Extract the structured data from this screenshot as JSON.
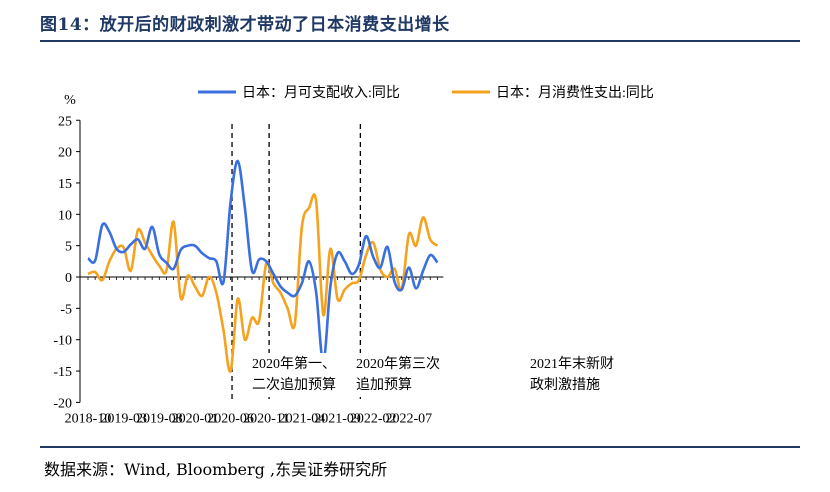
{
  "title": "图14：放开后的财政刺激才带动了日本消费支出增长",
  "source": "数据来源：Wind, Bloomberg ,东吴证券研究所",
  "chart_data": {
    "type": "line",
    "ylabel": "%",
    "ylim": [
      -20,
      25
    ],
    "yticks": [
      "25",
      "20",
      "15",
      "10",
      "5",
      "0",
      "-5",
      "-10",
      "-15",
      "-20"
    ],
    "xtick_labels": [
      "2018-10",
      "2019-03",
      "2019-08",
      "2020-01",
      "2020-06",
      "2020-11",
      "2021-04",
      "2021-09",
      "2022-02",
      "2022-07"
    ],
    "x_start": "2018-10",
    "legend_position": "top",
    "series": [
      {
        "name": "日本：月可支配收入:同比",
        "color": "#3a6fe0",
        "values": [
          3.0,
          2.6,
          8.3,
          7.2,
          4.5,
          4.0,
          5.2,
          6.0,
          4.5,
          8.0,
          3.6,
          2.3,
          1.3,
          4.3,
          5.0,
          5.0,
          3.8,
          3.0,
          2.5,
          -0.8,
          12.0,
          18.5,
          11.0,
          1.0,
          2.8,
          2.5,
          0.5,
          -1.5,
          -2.5,
          -3.0,
          -1.0,
          2.5,
          -2.5,
          -13.5,
          -1.5,
          3.8,
          2.5,
          0.5,
          2.0,
          6.5,
          3.2,
          1.5,
          4.8,
          -0.8,
          -2.0,
          1.5,
          -1.8,
          1.0,
          3.5,
          2.3
        ]
      },
      {
        "name": "日本：月消费性支出:同比",
        "color": "#f5a21e",
        "values": [
          0.5,
          0.8,
          -0.5,
          2.5,
          4.5,
          4.7,
          1.0,
          7.5,
          5.5,
          3.5,
          1.8,
          1.0,
          8.8,
          -3.3,
          0.2,
          -1.5,
          -3.0,
          0.0,
          -2.5,
          -8.5,
          -15.0,
          -3.5,
          -10.0,
          -6.5,
          -7.0,
          2.2,
          -1.0,
          -2.5,
          -5.0,
          -7.5,
          8.0,
          11.0,
          12.0,
          -6.0,
          4.5,
          -3.5,
          -2.0,
          -1.0,
          -0.5,
          3.5,
          5.5,
          1.2,
          0.0,
          1.3,
          -2.0,
          6.8,
          5.0,
          9.5,
          6.0,
          5.0
        ]
      }
    ],
    "annotations": [
      {
        "text_lines": [
          "2020年第一、",
          "二次追加预算"
        ]
      },
      {
        "text_lines": [
          "2020年第三次",
          "追加预算"
        ]
      },
      {
        "text_lines": [
          "2021年末新财",
          "政刺激措施"
        ]
      }
    ]
  }
}
